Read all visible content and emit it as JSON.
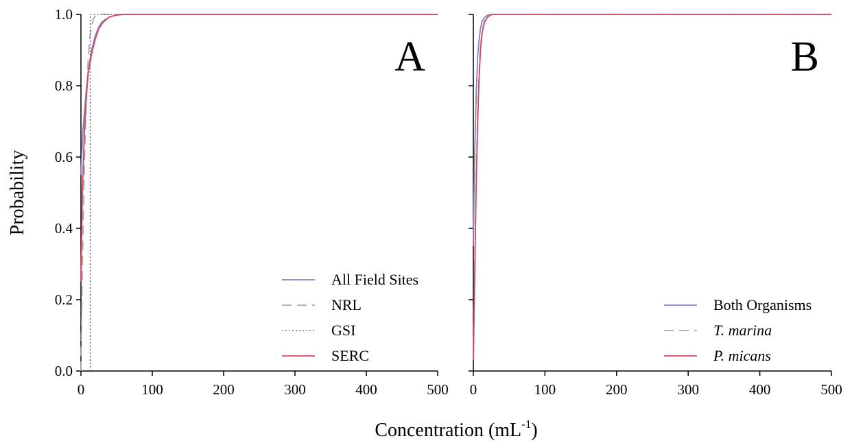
{
  "figure": {
    "ylabel": "Probability",
    "xlabel_main": "Concentration (mL",
    "xlabel_sup": "-1",
    "xlabel_close": ")"
  },
  "chart_data": [
    {
      "type": "line",
      "panel_label": "A",
      "xlim": [
        0,
        500
      ],
      "ylim": [
        0,
        1
      ],
      "xticks": [
        0,
        100,
        200,
        300,
        400,
        500
      ],
      "yticks": [
        0.0,
        0.2,
        0.4,
        0.6,
        0.8,
        1.0
      ],
      "ytick_labels": [
        "0.0",
        "0.2",
        "0.4",
        "0.6",
        "0.8",
        "1.0"
      ],
      "legend_position": "bottom-right",
      "series": [
        {
          "name": "All Field Sites",
          "color": "#7b86c4",
          "dash": "solid",
          "x": [
            0,
            1,
            3,
            5,
            8,
            10,
            15,
            20,
            25,
            30,
            40,
            50,
            60,
            80,
            100,
            500
          ],
          "y": [
            0.55,
            0.6,
            0.68,
            0.73,
            0.8,
            0.84,
            0.9,
            0.94,
            0.965,
            0.98,
            0.993,
            0.998,
            1.0,
            1.0,
            1.0,
            1.0
          ]
        },
        {
          "name": "NRL",
          "color": "#aaaaaa",
          "dash": "dashed",
          "x": [
            0,
            2,
            5,
            8,
            10,
            12,
            15,
            18,
            20,
            25,
            30,
            35,
            500
          ],
          "y": [
            0.0,
            0.3,
            0.6,
            0.78,
            0.87,
            0.93,
            0.97,
            0.99,
            0.995,
            1.0,
            1.0,
            1.0,
            1.0
          ]
        },
        {
          "name": "GSI",
          "color": "#555555",
          "dash": "dotted",
          "x": [
            13,
            13,
            13,
            28,
            500
          ],
          "y": [
            0.0,
            0.5,
            1.0,
            1.0,
            1.0
          ]
        },
        {
          "name": "SERC",
          "color": "#e0445e",
          "dash": "solid",
          "x": [
            0,
            2,
            5,
            8,
            10,
            15,
            20,
            25,
            30,
            35,
            40,
            50,
            60,
            80,
            500
          ],
          "y": [
            0.25,
            0.5,
            0.68,
            0.78,
            0.83,
            0.89,
            0.93,
            0.96,
            0.975,
            0.985,
            0.993,
            0.998,
            1.0,
            1.0,
            1.0
          ]
        }
      ]
    },
    {
      "type": "line",
      "panel_label": "B",
      "xlim": [
        0,
        500
      ],
      "ylim": [
        0,
        1
      ],
      "xticks": [
        0,
        100,
        200,
        300,
        400,
        500
      ],
      "yticks": [
        0.0,
        0.2,
        0.4,
        0.6,
        0.8,
        1.0
      ],
      "legend_position": "bottom-right",
      "series": [
        {
          "name": "Both Organisms",
          "color": "#7b86c4",
          "dash": "solid",
          "italic": false,
          "x": [
            0,
            1,
            2,
            4,
            6,
            8,
            10,
            12,
            15,
            20,
            25,
            30,
            500
          ],
          "y": [
            0.35,
            0.5,
            0.62,
            0.78,
            0.88,
            0.93,
            0.96,
            0.98,
            0.99,
            0.998,
            1.0,
            1.0,
            1.0
          ]
        },
        {
          "name": "T. marina",
          "color": "#aaaaaa",
          "dash": "dashed",
          "italic": true,
          "x": [
            0,
            2,
            4,
            6,
            8,
            10,
            12,
            15,
            20,
            25,
            30,
            500
          ],
          "y": [
            0.03,
            0.3,
            0.55,
            0.72,
            0.84,
            0.91,
            0.95,
            0.98,
            0.995,
            1.0,
            1.0,
            1.0
          ]
        },
        {
          "name": "P. micans",
          "color": "#e0445e",
          "dash": "solid",
          "italic": true,
          "x": [
            0,
            2,
            4,
            6,
            8,
            10,
            12,
            15,
            20,
            25,
            30,
            500
          ],
          "y": [
            0.03,
            0.28,
            0.52,
            0.7,
            0.82,
            0.9,
            0.945,
            0.975,
            0.993,
            0.999,
            1.0,
            1.0
          ]
        }
      ]
    }
  ]
}
